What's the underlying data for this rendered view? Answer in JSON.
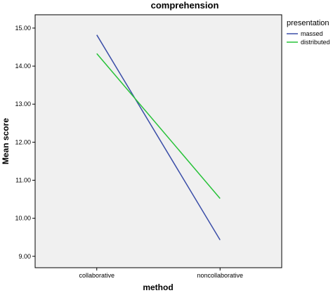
{
  "chart_data": {
    "type": "line",
    "title": "comprehension",
    "xlabel": "method",
    "ylabel": "Mean score",
    "categories": [
      "collaborative",
      "noncollaborative"
    ],
    "ylim": [
      8.7,
      15.35
    ],
    "yticks": [
      "9.00",
      "10.00",
      "11.00",
      "12.00",
      "13.00",
      "14.00",
      "15.00"
    ],
    "legend": {
      "title": "presentation",
      "position": "top-right"
    },
    "series": [
      {
        "name": "massed",
        "values": [
          14.82,
          9.43
        ],
        "color": "#3b4ea8"
      },
      {
        "name": "distributed",
        "values": [
          14.33,
          10.52
        ],
        "color": "#27c238"
      }
    ],
    "plot_background": "#f0f0f0",
    "grid": false
  }
}
